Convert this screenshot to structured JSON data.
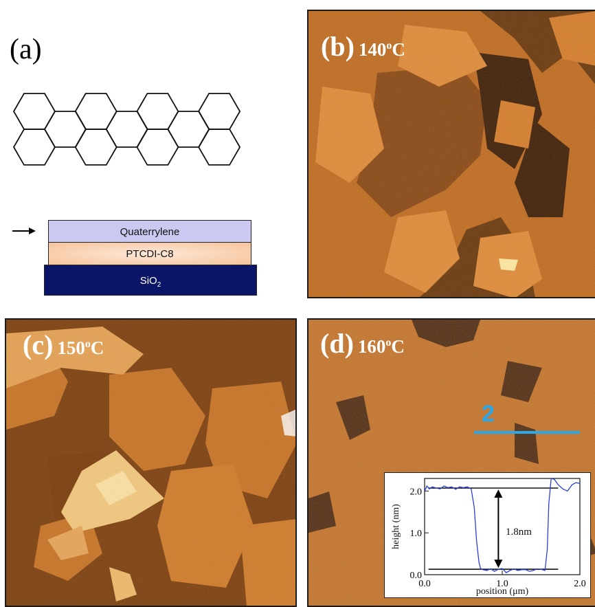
{
  "panel_a": {
    "label": "(a)",
    "stack": {
      "top": "Quaterrylene",
      "middle": "PTCDI-C8",
      "bottom_base": "SiO",
      "bottom_sub": "2"
    }
  },
  "panel_b": {
    "label": "(b)",
    "temp": "140",
    "temp_sup": "o",
    "temp_unit": "C"
  },
  "panel_c": {
    "label": "(c)",
    "temp": "150",
    "temp_sup": "o",
    "temp_unit": "C"
  },
  "panel_d": {
    "label": "(d)",
    "temp": "160",
    "temp_sup": "o",
    "temp_unit": "C",
    "line_label": "2"
  },
  "colors": {
    "accent_line": "#2aa8e8",
    "profile_line": "#2b3fd6",
    "afm_base": "#c0661a"
  },
  "chart_data": {
    "type": "line",
    "xlabel_prefix": "position (",
    "xlabel_unit": "μm",
    "xlabel_suffix": ")",
    "ylabel": "height (nm)",
    "xlim": [
      0.0,
      2.0
    ],
    "ylim": [
      0.0,
      2.3
    ],
    "x_ticks": [
      "0.0",
      "1.0",
      "2.0"
    ],
    "y_ticks": [
      "0.0",
      "1.0",
      "2.0"
    ],
    "annotation": "1.8nm",
    "reference_lines": [
      2.07,
      0.13
    ],
    "series": [
      {
        "x": [
          0.0,
          0.03,
          0.06,
          0.1,
          0.15,
          0.2,
          0.25,
          0.3,
          0.35,
          0.4,
          0.45,
          0.5,
          0.55,
          0.6,
          0.64,
          0.67,
          0.7,
          0.72,
          0.75,
          0.8,
          0.85,
          0.9,
          0.95,
          1.0,
          1.05,
          1.1,
          1.15,
          1.2,
          1.25,
          1.3,
          1.35,
          1.4,
          1.45,
          1.5,
          1.55,
          1.58,
          1.6,
          1.63,
          1.67,
          1.72,
          1.78,
          1.84,
          1.9,
          1.95,
          2.0
        ],
        "y": [
          2.0,
          2.12,
          2.05,
          2.1,
          2.07,
          2.05,
          2.12,
          2.08,
          2.1,
          2.04,
          2.1,
          2.08,
          2.1,
          2.05,
          1.6,
          0.8,
          0.3,
          0.15,
          0.12,
          0.1,
          0.14,
          0.08,
          0.13,
          0.15,
          0.05,
          0.1,
          0.14,
          0.1,
          0.12,
          0.12,
          0.08,
          0.1,
          0.14,
          0.13,
          0.1,
          0.6,
          1.7,
          2.3,
          2.28,
          2.15,
          2.05,
          2.0,
          2.15,
          2.2,
          2.18
        ]
      }
    ]
  }
}
